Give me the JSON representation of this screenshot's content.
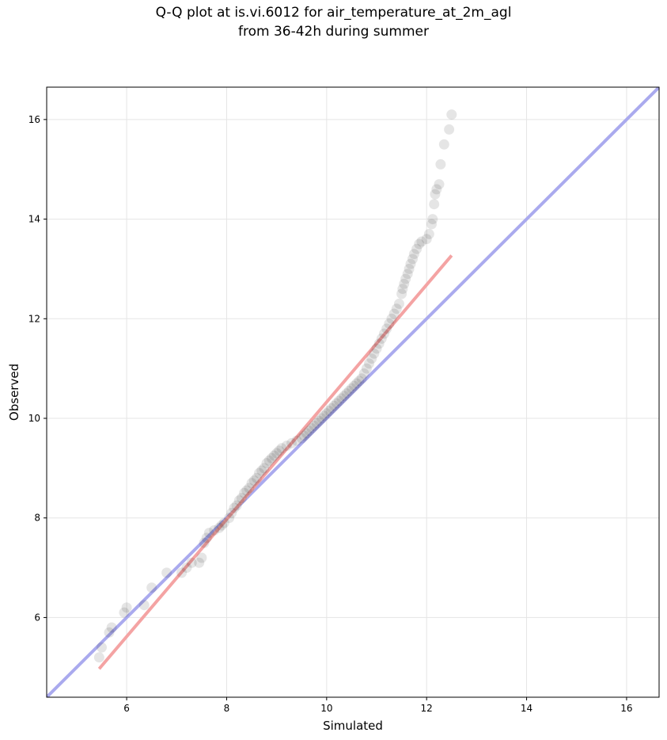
{
  "chart_data": {
    "type": "scatter",
    "title": "Q-Q plot at is.vi.6012 for air_temperature_at_2m_agl",
    "subtitle": "from 36-42h during summer",
    "xlabel": "Simulated",
    "ylabel": "Observed",
    "xlim": [
      4.4,
      16.65
    ],
    "ylim": [
      4.4,
      16.65
    ],
    "xticks": [
      6,
      8,
      10,
      12,
      14,
      16
    ],
    "yticks": [
      6,
      8,
      10,
      12,
      14,
      16
    ],
    "grid": true,
    "colors": {
      "points": "#000000",
      "identity_line": "#aaaaee",
      "fit_line": "#f4a3a3",
      "grid": "#e5e5e5"
    },
    "identity_line": {
      "x": [
        4.4,
        16.65
      ],
      "y": [
        4.4,
        16.65
      ]
    },
    "fit_line": {
      "x": [
        5.45,
        12.5
      ],
      "y": [
        4.97,
        13.27
      ]
    },
    "points": [
      [
        5.45,
        5.2
      ],
      [
        5.5,
        5.4
      ],
      [
        5.65,
        5.7
      ],
      [
        5.7,
        5.8
      ],
      [
        5.95,
        6.1
      ],
      [
        6.0,
        6.2
      ],
      [
        6.35,
        6.25
      ],
      [
        6.5,
        6.6
      ],
      [
        6.8,
        6.9
      ],
      [
        7.1,
        6.9
      ],
      [
        7.2,
        7.0
      ],
      [
        7.3,
        7.1
      ],
      [
        7.45,
        7.1
      ],
      [
        7.5,
        7.2
      ],
      [
        7.55,
        7.5
      ],
      [
        7.6,
        7.6
      ],
      [
        7.65,
        7.7
      ],
      [
        7.75,
        7.75
      ],
      [
        7.85,
        7.8
      ],
      [
        7.9,
        7.85
      ],
      [
        7.95,
        7.9
      ],
      [
        8.05,
        8.0
      ],
      [
        8.1,
        8.1
      ],
      [
        8.15,
        8.2
      ],
      [
        8.2,
        8.25
      ],
      [
        8.25,
        8.35
      ],
      [
        8.3,
        8.4
      ],
      [
        8.35,
        8.5
      ],
      [
        8.4,
        8.55
      ],
      [
        8.45,
        8.6
      ],
      [
        8.5,
        8.7
      ],
      [
        8.55,
        8.75
      ],
      [
        8.6,
        8.8
      ],
      [
        8.65,
        8.9
      ],
      [
        8.7,
        8.95
      ],
      [
        8.75,
        9.0
      ],
      [
        8.8,
        9.1
      ],
      [
        8.85,
        9.15
      ],
      [
        8.9,
        9.2
      ],
      [
        8.95,
        9.25
      ],
      [
        9.0,
        9.3
      ],
      [
        9.05,
        9.35
      ],
      [
        9.1,
        9.4
      ],
      [
        9.2,
        9.45
      ],
      [
        9.3,
        9.5
      ],
      [
        9.4,
        9.55
      ],
      [
        9.5,
        9.6
      ],
      [
        9.55,
        9.65
      ],
      [
        9.6,
        9.7
      ],
      [
        9.65,
        9.75
      ],
      [
        9.7,
        9.8
      ],
      [
        9.75,
        9.85
      ],
      [
        9.8,
        9.9
      ],
      [
        9.85,
        9.95
      ],
      [
        9.9,
        10.0
      ],
      [
        9.95,
        10.05
      ],
      [
        10.0,
        10.1
      ],
      [
        10.05,
        10.15
      ],
      [
        10.1,
        10.2
      ],
      [
        10.15,
        10.25
      ],
      [
        10.2,
        10.3
      ],
      [
        10.25,
        10.35
      ],
      [
        10.3,
        10.4
      ],
      [
        10.35,
        10.45
      ],
      [
        10.4,
        10.5
      ],
      [
        10.45,
        10.55
      ],
      [
        10.5,
        10.6
      ],
      [
        10.55,
        10.65
      ],
      [
        10.6,
        10.7
      ],
      [
        10.65,
        10.75
      ],
      [
        10.7,
        10.8
      ],
      [
        10.75,
        10.9
      ],
      [
        10.8,
        11.0
      ],
      [
        10.85,
        11.1
      ],
      [
        10.9,
        11.2
      ],
      [
        10.95,
        11.3
      ],
      [
        11.0,
        11.4
      ],
      [
        11.05,
        11.5
      ],
      [
        11.1,
        11.6
      ],
      [
        11.15,
        11.7
      ],
      [
        11.2,
        11.8
      ],
      [
        11.25,
        11.9
      ],
      [
        11.3,
        12.0
      ],
      [
        11.35,
        12.1
      ],
      [
        11.4,
        12.2
      ],
      [
        11.45,
        12.3
      ],
      [
        11.5,
        12.5
      ],
      [
        11.52,
        12.6
      ],
      [
        11.55,
        12.7
      ],
      [
        11.58,
        12.8
      ],
      [
        11.62,
        12.9
      ],
      [
        11.65,
        13.0
      ],
      [
        11.68,
        13.1
      ],
      [
        11.72,
        13.2
      ],
      [
        11.75,
        13.3
      ],
      [
        11.8,
        13.4
      ],
      [
        11.85,
        13.5
      ],
      [
        11.9,
        13.55
      ],
      [
        12.0,
        13.6
      ],
      [
        12.05,
        13.7
      ],
      [
        12.1,
        13.9
      ],
      [
        12.12,
        14.0
      ],
      [
        12.15,
        14.3
      ],
      [
        12.17,
        14.5
      ],
      [
        12.2,
        14.6
      ],
      [
        12.25,
        14.7
      ],
      [
        12.28,
        15.1
      ],
      [
        12.35,
        15.5
      ],
      [
        12.45,
        15.8
      ],
      [
        12.5,
        16.1
      ]
    ]
  }
}
